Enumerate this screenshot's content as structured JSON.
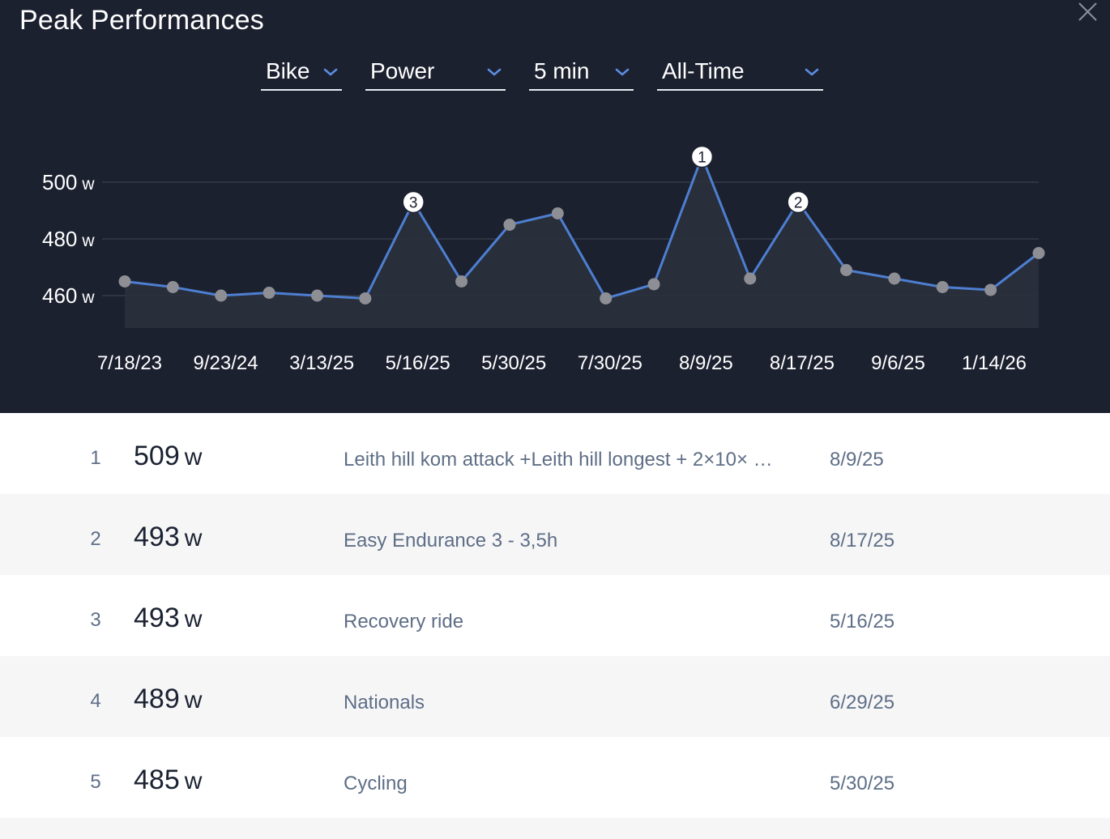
{
  "panel": {
    "title": "Peak Performances"
  },
  "filters": {
    "sport": "Bike",
    "metric": "Power",
    "duration": "5 min",
    "range": "All-Time"
  },
  "colors": {
    "background": "#1c2130",
    "line": "#4d7fd1",
    "point": "#8d8f95",
    "area": "#2b303d",
    "grid": "#3a404d",
    "row_alt": "#f6f6f7"
  },
  "chart_data": {
    "type": "line",
    "unit": "w",
    "ylim": [
      454,
      512
    ],
    "y_ticks": [
      {
        "value": 500,
        "label": "500",
        "unit": "w"
      },
      {
        "value": 480,
        "label": "480",
        "unit": "w"
      },
      {
        "value": 460,
        "label": "460",
        "unit": "w"
      }
    ],
    "x_tick_labels": [
      "7/18/23",
      "9/23/24",
      "3/13/25",
      "5/16/25",
      "5/30/25",
      "7/30/25",
      "8/9/25",
      "8/17/25",
      "9/6/25",
      "1/14/26"
    ],
    "series": [
      {
        "values": [
          465,
          463,
          460,
          461,
          460,
          459,
          493,
          465,
          485,
          489,
          459,
          464,
          509,
          466,
          493,
          469,
          466,
          463,
          462,
          475
        ]
      }
    ],
    "ranked_points": [
      {
        "rank": "1",
        "index": 12
      },
      {
        "rank": "2",
        "index": 14
      },
      {
        "rank": "3",
        "index": 6
      }
    ],
    "grid": true,
    "area_fill": true
  },
  "rankings": [
    {
      "rank": "1",
      "value": "509",
      "unit": "w",
      "workout": "Leith hill kom attack +Leith hill longest + 2×10× …",
      "date": "8/9/25"
    },
    {
      "rank": "2",
      "value": "493",
      "unit": "w",
      "workout": "Easy Endurance 3 - 3,5h",
      "date": "8/17/25"
    },
    {
      "rank": "3",
      "value": "493",
      "unit": "w",
      "workout": "Recovery ride",
      "date": "5/16/25"
    },
    {
      "rank": "4",
      "value": "489",
      "unit": "w",
      "workout": "Nationals",
      "date": "6/29/25"
    },
    {
      "rank": "5",
      "value": "485",
      "unit": "w",
      "workout": "Cycling",
      "date": "5/30/25"
    }
  ]
}
